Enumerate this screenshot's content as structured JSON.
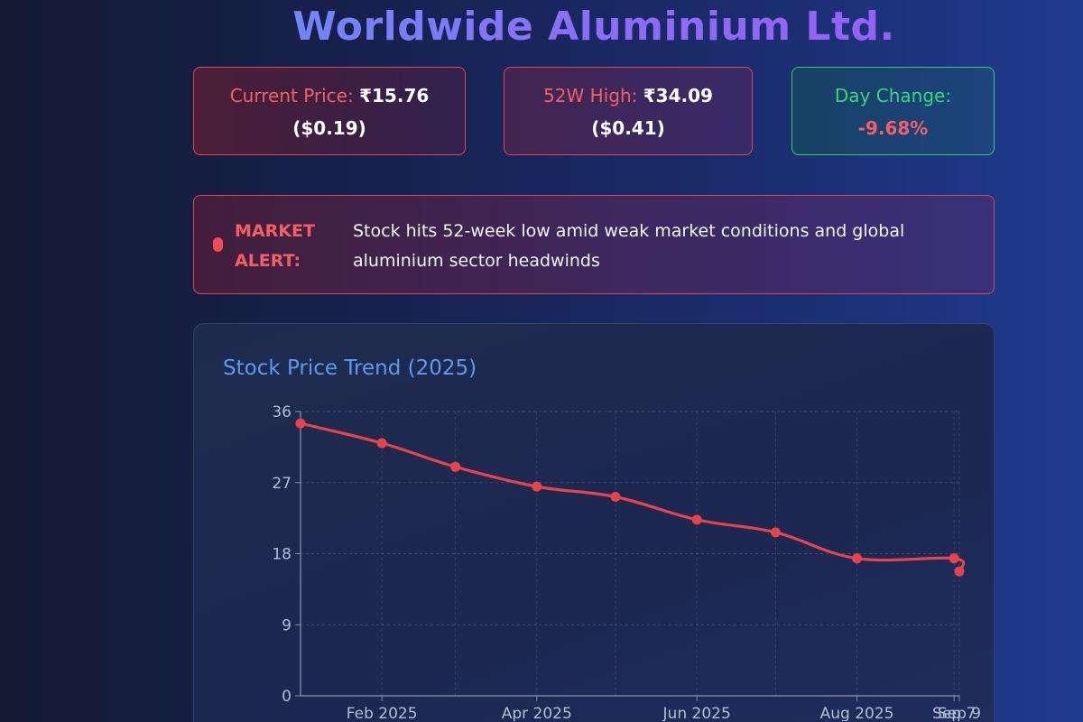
{
  "page": {
    "title": "Worldwide Aluminium Ltd."
  },
  "cards": {
    "price": {
      "label": "Current Price:",
      "value": "₹15.76",
      "usd": "($0.19)"
    },
    "high": {
      "label": "52W High:",
      "value": "₹34.09",
      "usd": "($0.41)"
    },
    "change": {
      "label": "Day Change:",
      "value": "-9.68%"
    }
  },
  "alert": {
    "label": "MARKET ALERT:",
    "text": "Stock hits 52-week low amid weak market conditions and global aluminium sector headwinds"
  },
  "colors": {
    "line": "#e8434b",
    "accent_red": "#f26065",
    "accent_green": "#35d879",
    "chart_title": "#5b9bf3"
  },
  "chart_data": {
    "type": "line",
    "title": "Stock Price Trend (2025)",
    "x": [
      "2025-01-01",
      "2025-02-01",
      "2025-03-01",
      "2025-04-01",
      "2025-05-01",
      "2025-06-01",
      "2025-07-01",
      "2025-08-01",
      "2025-09-07",
      "2025-09-09"
    ],
    "x_tick_labels": [
      "Feb 2025",
      "Apr 2025",
      "Jun 2025",
      "Aug 2025",
      "Sep 7",
      "Sep 9"
    ],
    "series": [
      {
        "values": [
          34.5,
          32.0,
          29.0,
          26.5,
          25.2,
          22.3,
          20.7,
          17.4,
          17.4,
          15.76
        ]
      }
    ],
    "y_ticks": [
      0,
      9,
      18,
      27,
      36
    ],
    "ylim": [
      0,
      36
    ],
    "grid": true,
    "xlabel": "",
    "ylabel": ""
  }
}
